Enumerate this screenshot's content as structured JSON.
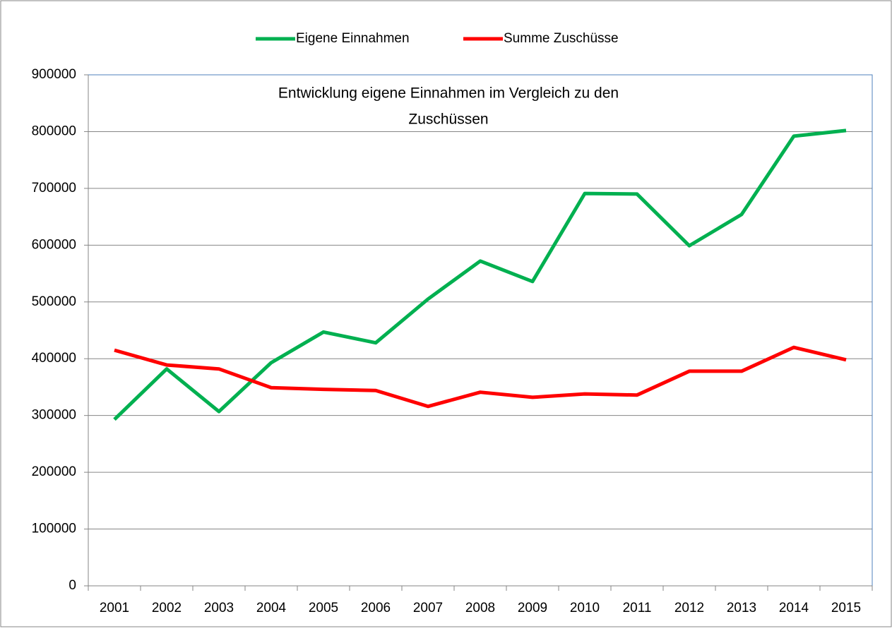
{
  "chart_data": {
    "type": "line",
    "title": [
      "Entwicklung  eigene Einnahmen im Vergleich zu den",
      "Zuschüssen"
    ],
    "categories": [
      "2001",
      "2002",
      "2003",
      "2004",
      "2005",
      "2006",
      "2007",
      "2008",
      "2009",
      "2010",
      "2011",
      "2012",
      "2013",
      "2014",
      "2015"
    ],
    "series": [
      {
        "name": "Eigene Einnahmen",
        "color": "#00b050",
        "values": [
          293000,
          382000,
          307000,
          393000,
          447000,
          428000,
          505000,
          572000,
          536000,
          691000,
          690000,
          599000,
          654000,
          792000,
          802000
        ]
      },
      {
        "name": "Summe Zuschüsse",
        "color": "#ff0000",
        "values": [
          415000,
          389000,
          382000,
          349000,
          346000,
          344000,
          316000,
          341000,
          332000,
          338000,
          336000,
          378000,
          378000,
          420000,
          398000
        ]
      }
    ],
    "ylim": [
      0,
      900000
    ],
    "yticks": [
      0,
      100000,
      200000,
      300000,
      400000,
      500000,
      600000,
      700000,
      800000,
      900000
    ],
    "grid": true,
    "legend": "top"
  }
}
